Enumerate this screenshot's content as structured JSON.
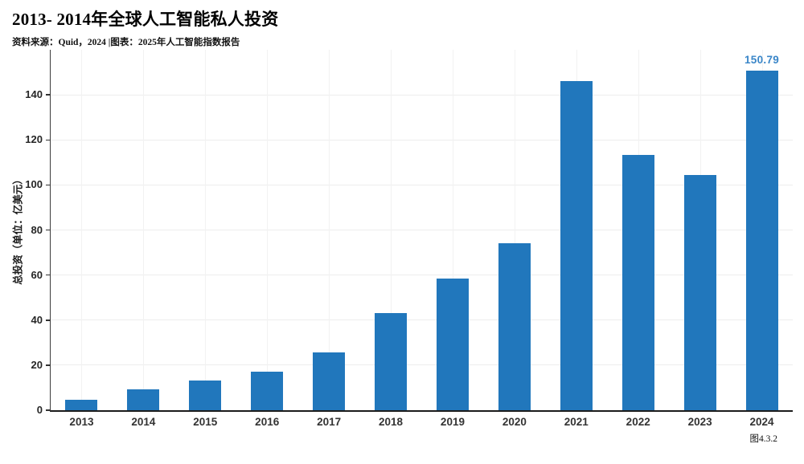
{
  "header": {
    "title": "2013- 2014年全球人工智能私人投资",
    "source_note": "资料来源：Quid，2024 |图表：2025年人工智能指数报告"
  },
  "footer": {
    "figure_caption": "图4.3.2"
  },
  "chart_data": {
    "type": "bar",
    "title": "2013- 2014年全球人工智能私人投资",
    "categories": [
      "2013",
      "2014",
      "2015",
      "2016",
      "2017",
      "2018",
      "2019",
      "2020",
      "2021",
      "2022",
      "2023",
      "2024"
    ],
    "values": [
      4.6,
      9.3,
      13.3,
      17.0,
      25.5,
      43.2,
      58.3,
      74.0,
      146.0,
      113.5,
      104.3,
      150.79
    ],
    "xlabel": "",
    "ylabel": "总投资（单位：亿美元）",
    "ylim": [
      0,
      160
    ],
    "y_ticks": [
      0,
      20,
      40,
      60,
      80,
      100,
      120,
      140
    ],
    "grid": true,
    "legend": "none",
    "data_labels": [
      {
        "category": "2024",
        "text": "150.79"
      }
    ],
    "colors": {
      "bar": "#2177bc",
      "data_label": "#3a86c8",
      "axis": "#1c1c1c",
      "gridline_h": "#ededed",
      "gridline_v": "#f2f2f2",
      "tick_text": "#333333"
    }
  }
}
